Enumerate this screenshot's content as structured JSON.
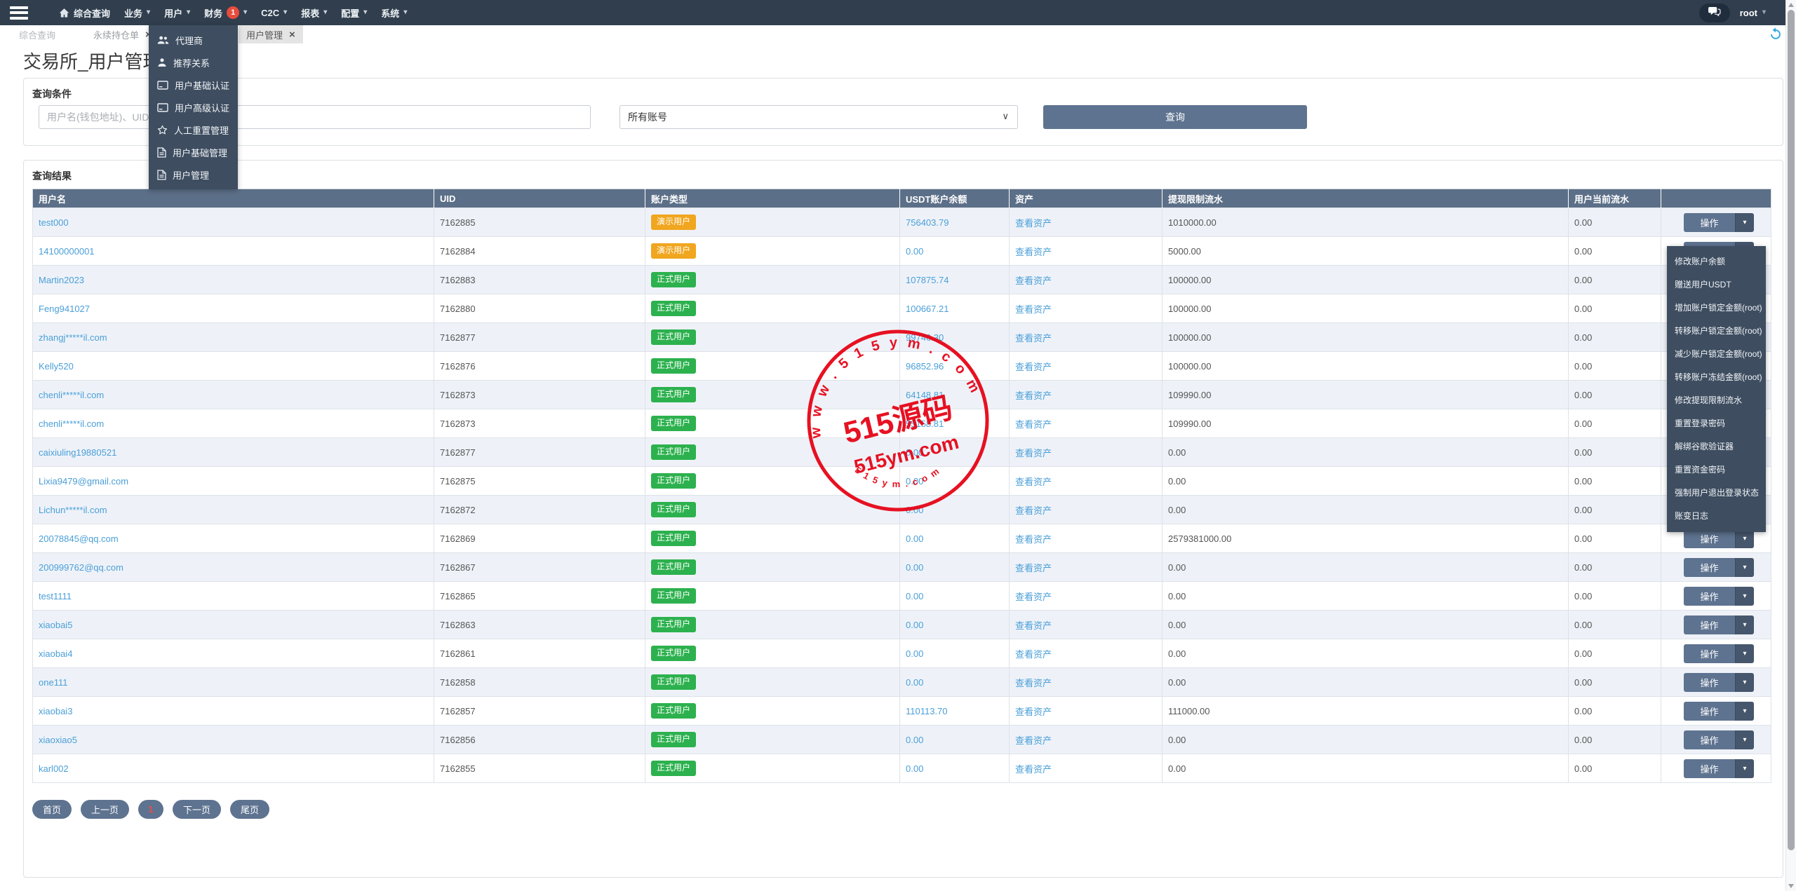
{
  "nav": {
    "items": [
      {
        "id": "dashboard",
        "icon": "home",
        "label": "综合查询",
        "caret": false
      },
      {
        "id": "business",
        "label": "业务",
        "caret": true
      },
      {
        "id": "user",
        "label": "用户",
        "caret": true
      },
      {
        "id": "finance",
        "label": "财务",
        "badge": "1",
        "caret": true
      },
      {
        "id": "c2c",
        "label": "C2C",
        "caret": true
      },
      {
        "id": "report",
        "label": "报表",
        "caret": true
      },
      {
        "id": "config",
        "label": "配置",
        "caret": true
      },
      {
        "id": "system",
        "label": "系统",
        "caret": true
      }
    ],
    "user": "root"
  },
  "user_menu": {
    "items": [
      {
        "icon": "users",
        "label": "代理商"
      },
      {
        "icon": "user",
        "label": "推荐关系"
      },
      {
        "icon": "card",
        "label": "用户基础认证"
      },
      {
        "icon": "card",
        "label": "用户高级认证"
      },
      {
        "icon": "star",
        "label": "人工重置管理"
      },
      {
        "icon": "file",
        "label": "用户基础管理"
      },
      {
        "icon": "file",
        "label": "用户管理"
      }
    ]
  },
  "tabs": [
    {
      "label": "综合查询",
      "closable": false,
      "active": false
    },
    {
      "label": "永续持仓单",
      "closable": true,
      "active": false
    },
    {
      "label": "用户管理",
      "closable": true,
      "active": true
    }
  ],
  "page": {
    "title": "交易所_用户管理",
    "query_conditions_label": "查询条件",
    "query_results_label": "查询结果"
  },
  "search": {
    "input_placeholder": "用户名(钱包地址)、UID",
    "account_type_value": "所有账号",
    "submit_label": "查询"
  },
  "table": {
    "columns": [
      "用户名",
      "UID",
      "账户类型",
      "USDT账户余额",
      "资产",
      "提现限制流水",
      "用户当前流水",
      ""
    ],
    "view_assets_label": "查看资产",
    "action_label": "操作",
    "user_types": {
      "demo": {
        "label": "演示用户",
        "color": "#f0a61f"
      },
      "formal": {
        "label": "正式用户",
        "color": "#2cb14e"
      }
    },
    "rows": [
      {
        "username": "test000",
        "uid": "7162885",
        "type": "demo",
        "usdt_balance": "756403.79",
        "withdraw_limit_flow": "1010000.00",
        "current_flow": "0.00"
      },
      {
        "username": "14100000001",
        "uid": "7162884",
        "type": "demo",
        "usdt_balance": "0.00",
        "withdraw_limit_flow": "5000.00",
        "current_flow": "0.00"
      },
      {
        "username": "Martin2023",
        "uid": "7162883",
        "type": "formal",
        "usdt_balance": "107875.74",
        "withdraw_limit_flow": "100000.00",
        "current_flow": "0.00"
      },
      {
        "username": "Feng941027",
        "uid": "7162880",
        "type": "formal",
        "usdt_balance": "100667.21",
        "withdraw_limit_flow": "100000.00",
        "current_flow": "0.00"
      },
      {
        "username": "zhangj*****il.com",
        "uid": "7162877",
        "type": "formal",
        "usdt_balance": "99746.30",
        "withdraw_limit_flow": "100000.00",
        "current_flow": "0.00"
      },
      {
        "username": "Kelly520",
        "uid": "7162876",
        "type": "formal",
        "usdt_balance": "96852.96",
        "withdraw_limit_flow": "100000.00",
        "current_flow": "0.00"
      },
      {
        "username": "chenli*****il.com",
        "uid": "7162873",
        "type": "formal",
        "usdt_balance": "64148.81",
        "withdraw_limit_flow": "109990.00",
        "current_flow": "0.00"
      },
      {
        "username": "chenli*****il.com",
        "uid": "7162873",
        "type": "formal",
        "usdt_balance": "55158.81",
        "withdraw_limit_flow": "109990.00",
        "current_flow": "0.00"
      },
      {
        "username": "caixiuling19880521",
        "uid": "7162877",
        "type": "formal",
        "usdt_balance": "0.00",
        "withdraw_limit_flow": "0.00",
        "current_flow": "0.00"
      },
      {
        "username": "Lixia9479@gmail.com",
        "uid": "7162875",
        "type": "formal",
        "usdt_balance": "0.00",
        "withdraw_limit_flow": "0.00",
        "current_flow": "0.00"
      },
      {
        "username": "Lichun*****il.com",
        "uid": "7162872",
        "type": "formal",
        "usdt_balance": "0.00",
        "withdraw_limit_flow": "0.00",
        "current_flow": "0.00"
      },
      {
        "username": "20078845@qq.com",
        "uid": "7162869",
        "type": "formal",
        "usdt_balance": "0.00",
        "withdraw_limit_flow": "2579381000.00",
        "current_flow": "0.00"
      },
      {
        "username": "200999762@qq.com",
        "uid": "7162867",
        "type": "formal",
        "usdt_balance": "0.00",
        "withdraw_limit_flow": "0.00",
        "current_flow": "0.00"
      },
      {
        "username": "test1111",
        "uid": "7162865",
        "type": "formal",
        "usdt_balance": "0.00",
        "withdraw_limit_flow": "0.00",
        "current_flow": "0.00"
      },
      {
        "username": "xiaobai5",
        "uid": "7162863",
        "type": "formal",
        "usdt_balance": "0.00",
        "withdraw_limit_flow": "0.00",
        "current_flow": "0.00"
      },
      {
        "username": "xiaobai4",
        "uid": "7162861",
        "type": "formal",
        "usdt_balance": "0.00",
        "withdraw_limit_flow": "0.00",
        "current_flow": "0.00"
      },
      {
        "username": "one111",
        "uid": "7162858",
        "type": "formal",
        "usdt_balance": "0.00",
        "withdraw_limit_flow": "0.00",
        "current_flow": "0.00"
      },
      {
        "username": "xiaobai3",
        "uid": "7162857",
        "type": "formal",
        "usdt_balance": "110113.70",
        "withdraw_limit_flow": "111000.00",
        "current_flow": "0.00"
      },
      {
        "username": "xiaoxiao5",
        "uid": "7162856",
        "type": "formal",
        "usdt_balance": "0.00",
        "withdraw_limit_flow": "0.00",
        "current_flow": "0.00"
      },
      {
        "username": "karl002",
        "uid": "7162855",
        "type": "formal",
        "usdt_balance": "0.00",
        "withdraw_limit_flow": "0.00",
        "current_flow": "0.00"
      }
    ]
  },
  "action_menu": {
    "items": [
      "修改账户余额",
      "赠送用户USDT",
      "增加账户锁定金额(root)",
      "转移账户锁定金额(root)",
      "减少账户锁定金额(root)",
      "转移账户冻结金额(root)",
      "修改提现限制流水",
      "重置登录密码",
      "解绑谷歌验证器",
      "重置资金密码",
      "强制用户退出登录状态",
      "账变日志"
    ]
  },
  "pagination": {
    "items": [
      {
        "label": "首页",
        "current": false
      },
      {
        "label": "上一页",
        "current": false
      },
      {
        "label": "1",
        "current": true
      },
      {
        "label": "下一页",
        "current": false
      },
      {
        "label": "尾页",
        "current": false
      }
    ]
  },
  "watermark": {
    "arc_top": "w w w . 5 1 5 y m . c o m",
    "center": "515源码",
    "line2": "515ym.com",
    "arc_bottom": "5 1 5 y m . c o m",
    "color": "#e60012"
  },
  "colors": {
    "nav_bg": "#303e4d",
    "dropdown_bg": "#3e4d60",
    "table_header_bg": "#5c6f88",
    "primary_button_bg": "#5e7390",
    "link": "#4a9fd8",
    "notification_badge": "#e74c3c",
    "row_alt": "#eef2f8",
    "demo_badge": "#f0a61f",
    "formal_badge": "#2cb14e",
    "watermark_red": "#e60012"
  }
}
